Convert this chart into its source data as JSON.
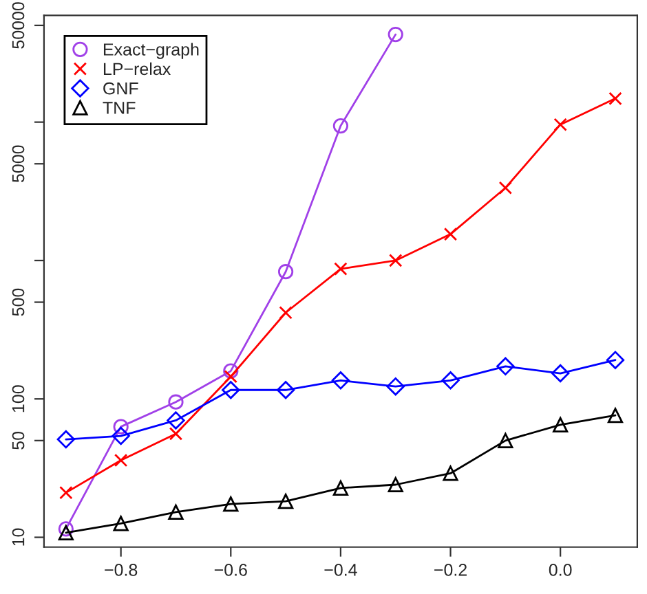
{
  "chart_data": {
    "type": "line",
    "log": "y",
    "grid": false,
    "legend": "top left",
    "xlim": [
      -0.94,
      0.14
    ],
    "xticks": [
      {
        "value": -0.8,
        "label": "−0.8"
      },
      {
        "value": -0.6,
        "label": "−0.6"
      },
      {
        "value": -0.4,
        "label": "−0.4"
      },
      {
        "value": -0.2,
        "label": "−0.2"
      },
      {
        "value": 0.0,
        "label": "0.0"
      }
    ],
    "ylim": [
      8.5,
      59000
    ],
    "yticks": [
      10,
      50,
      100,
      500,
      {
        "value": 1000,
        "label": null
      },
      5000,
      {
        "value": 10000,
        "label": null
      },
      50000
    ],
    "x": [
      -0.9,
      -0.8,
      -0.7,
      -0.6,
      -0.5,
      -0.4,
      -0.3,
      -0.2,
      -0.1,
      0.0,
      0.1
    ],
    "series": [
      {
        "name": "Exact−graph",
        "color": "#a040e8",
        "marker": "circle",
        "values": [
          11.5,
          63,
          95,
          159,
          830,
          9400,
          43000,
          null,
          null,
          null,
          null
        ]
      },
      {
        "name": "LP−relax",
        "color": "#ff0000",
        "marker": "cross",
        "values": [
          21,
          36,
          56,
          145,
          420,
          870,
          1000,
          1550,
          3350,
          9600,
          14800
        ]
      },
      {
        "name": "GNF",
        "color": "#0000ff",
        "marker": "diamond",
        "values": [
          51,
          54,
          70,
          116,
          116,
          136,
          123,
          136,
          172,
          153,
          191
        ]
      },
      {
        "name": "TNF",
        "color": "#000000",
        "marker": "triangle",
        "values": [
          10.8,
          12.6,
          15.2,
          17.4,
          18.2,
          22.7,
          24,
          29,
          50,
          65,
          76
        ]
      }
    ]
  }
}
